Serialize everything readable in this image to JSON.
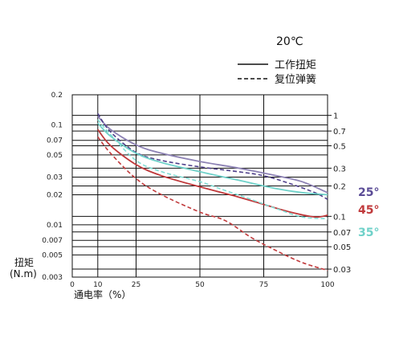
{
  "chart_data": {
    "type": "line",
    "title": "20℃",
    "xlabel": "通电率（%）",
    "ylabel_line1": "扭矩",
    "ylabel_line2": "(N.m)",
    "x_ticks": [
      "0",
      "10",
      "25",
      "50",
      "75",
      "100"
    ],
    "x_tick_values": [
      0,
      10,
      25,
      50,
      75,
      100
    ],
    "xlim": [
      0,
      100
    ],
    "left_y_ticks": [
      "0.2",
      "0.1",
      "0.07",
      "0.05",
      "0.03",
      "0.02",
      "0.01",
      "0.007",
      "0.005",
      "0.003"
    ],
    "left_y_tick_values": [
      0.2,
      0.1,
      0.07,
      0.05,
      0.03,
      0.02,
      0.01,
      0.007,
      0.005,
      0.003
    ],
    "left_ylim": [
      0.003,
      0.2
    ],
    "right_y_ticks": [
      "1",
      "0.7",
      "0.5",
      "0.3",
      "0.2",
      "0.1",
      "0.07",
      "0.05",
      "0.03"
    ],
    "right_y_tick_values": [
      1,
      0.7,
      0.5,
      0.3,
      0.2,
      0.1,
      0.07,
      0.05,
      0.03
    ],
    "right_ylim": [
      0.025,
      1.6
    ],
    "log_scale": true,
    "grid": true,
    "legend": [
      {
        "label": "工作扭矩",
        "style": "solid"
      },
      {
        "label": "复位弹簧",
        "style": "dashed"
      }
    ],
    "series": [
      {
        "name": "25°",
        "kind": "solid",
        "color": "#8d82b4",
        "x": [
          10,
          15,
          25,
          35,
          50,
          65,
          80,
          90,
          100
        ],
        "y": [
          0.122,
          0.09,
          0.063,
          0.052,
          0.043,
          0.037,
          0.031,
          0.027,
          0.021
        ]
      },
      {
        "name": "25°",
        "kind": "dashed",
        "color": "#4e3f8a",
        "x": [
          10,
          15,
          25,
          35,
          50,
          65,
          75,
          85,
          95,
          100
        ],
        "y": [
          0.13,
          0.085,
          0.053,
          0.044,
          0.038,
          0.034,
          0.031,
          0.026,
          0.021,
          0.018
        ]
      },
      {
        "name": "45°",
        "kind": "solid",
        "color": "#c0393b",
        "x": [
          10,
          15,
          25,
          35,
          50,
          65,
          75,
          85,
          95,
          100
        ],
        "y": [
          0.09,
          0.062,
          0.04,
          0.031,
          0.024,
          0.019,
          0.016,
          0.0135,
          0.012,
          0.0125
        ]
      },
      {
        "name": "45°",
        "kind": "dashed",
        "color": "#c0393b",
        "x": [
          10,
          15,
          25,
          35,
          50,
          60,
          70,
          80,
          90,
          100
        ],
        "y": [
          0.076,
          0.052,
          0.029,
          0.02,
          0.0134,
          0.011,
          0.0075,
          0.0055,
          0.0042,
          0.0035
        ]
      },
      {
        "name": "35°",
        "kind": "solid",
        "color": "#6fd1c9",
        "x": [
          10,
          15,
          25,
          35,
          50,
          65,
          80,
          90,
          100
        ],
        "y": [
          0.104,
          0.077,
          0.052,
          0.042,
          0.034,
          0.028,
          0.023,
          0.021,
          0.02
        ]
      },
      {
        "name": "35°",
        "kind": "dashed",
        "color": "#7fdcd3",
        "x": [
          10,
          15,
          25,
          35,
          50,
          60,
          70,
          80,
          90,
          100
        ],
        "y": [
          0.113,
          0.08,
          0.044,
          0.034,
          0.027,
          0.022,
          0.018,
          0.0145,
          0.012,
          0.0115
        ]
      }
    ],
    "angle_labels": [
      {
        "text": "25°",
        "color": "#5a4b96"
      },
      {
        "text": "45°",
        "color": "#c0393b"
      },
      {
        "text": "35°",
        "color": "#6fd1c9"
      }
    ]
  }
}
